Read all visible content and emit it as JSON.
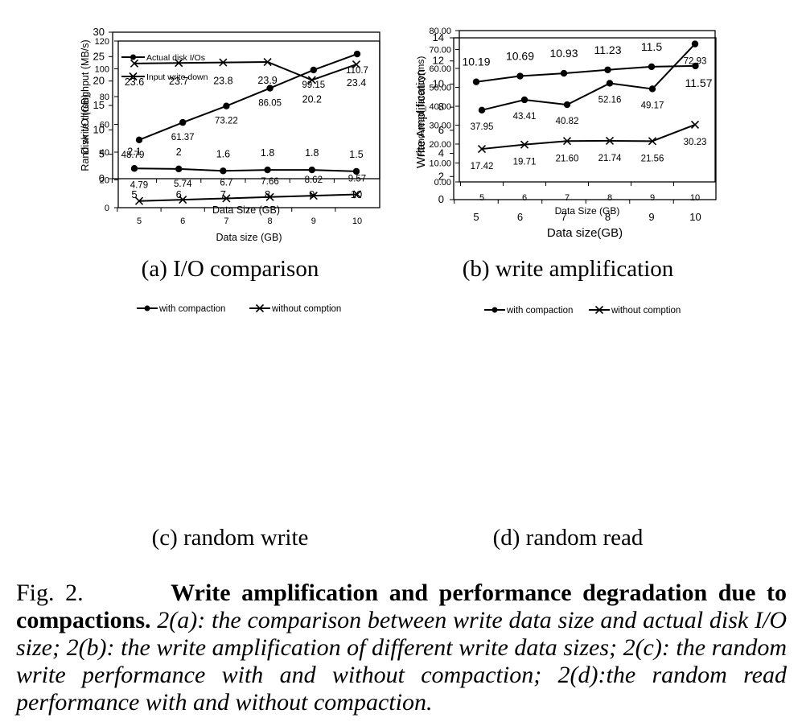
{
  "chart_data": [
    {
      "id": "a",
      "type": "line",
      "subcaption": "(a) I/O comparison",
      "xlabel": "Data size (GB)",
      "ylabel": "Disk I/O (GB)",
      "x": [
        5,
        6,
        7,
        8,
        9,
        10
      ],
      "ylim": [
        0,
        120
      ],
      "yticks": [
        "0",
        "20",
        "40",
        "60",
        "80",
        "100",
        "120"
      ],
      "legend_position": "top-left",
      "series": [
        {
          "name": "Actual disk I/Os",
          "marker": "dot",
          "values": [
            48.79,
            61.37,
            73.22,
            86.05,
            99.15,
            110.7
          ],
          "labels": [
            "48.79",
            "61.37",
            "73.22",
            "86.05",
            "99.15",
            "110.7"
          ]
        },
        {
          "name": "Input write down",
          "marker": "cross",
          "values": [
            4.79,
            5.74,
            6.7,
            7.66,
            8.62,
            9.57
          ],
          "labels": [
            "4.79",
            "5.74",
            "6.7",
            "7.66",
            "8.62",
            "9.57"
          ]
        }
      ]
    },
    {
      "id": "b",
      "type": "line",
      "subcaption": "(b) write amplification",
      "xlabel": "Data size(GB)",
      "ylabel": "Write Amplification",
      "x": [
        5,
        6,
        7,
        8,
        9,
        10
      ],
      "ylim": [
        0,
        14
      ],
      "yticks": [
        "0",
        "2",
        "4",
        "6",
        "8",
        "10",
        "12",
        "14"
      ],
      "series": [
        {
          "marker": "dot",
          "values": [
            10.19,
            10.69,
            10.93,
            11.23,
            11.5,
            11.57
          ],
          "labels": [
            "10.19",
            "10.69",
            "10.93",
            "11.23",
            "11.5",
            "11.57"
          ]
        }
      ]
    },
    {
      "id": "c",
      "type": "line",
      "subcaption": "(c) random write",
      "xlabel": "Data Size (GB)",
      "ylabel": "Rand.write.throughput (MB/s)",
      "x": [
        5,
        6,
        7,
        8,
        9,
        10
      ],
      "ylim": [
        0,
        30
      ],
      "yticks": [
        "0",
        "5",
        "10",
        "15",
        "20",
        "25",
        "30"
      ],
      "legend_position": "top",
      "series": [
        {
          "name": "with compaction",
          "marker": "dot",
          "values": [
            2.1,
            2,
            1.6,
            1.8,
            1.8,
            1.5
          ],
          "labels": [
            "2.1",
            "2",
            "1.6",
            "1.8",
            "1.8",
            "1.5"
          ]
        },
        {
          "name": "without comption",
          "marker": "cross",
          "values": [
            23.6,
            23.7,
            23.8,
            23.9,
            20.2,
            23.4
          ],
          "labels": [
            "23.6",
            "23.7",
            "23.8",
            "23.9",
            "20.2",
            "23.4"
          ]
        }
      ]
    },
    {
      "id": "d",
      "type": "line",
      "subcaption": "(d) random read",
      "xlabel": "Data Size (GB)",
      "ylabel": "Rand.read_latency(ms)",
      "x": [
        5,
        6,
        7,
        8,
        9,
        10
      ],
      "ylim": [
        0,
        80
      ],
      "yticks": [
        "0.00",
        "10.00",
        "20.00",
        "30.00",
        "40.00",
        "50.00",
        "60.00",
        "70.00",
        "80.00"
      ],
      "legend_position": "top",
      "series": [
        {
          "name": "with compaction",
          "marker": "dot",
          "values": [
            37.95,
            43.41,
            40.82,
            52.16,
            49.17,
            72.93
          ],
          "labels": [
            "37.95",
            "43.41",
            "40.82",
            "52.16",
            "49.17",
            "72.93"
          ]
        },
        {
          "name": "without comption",
          "marker": "cross",
          "values": [
            17.42,
            19.71,
            21.6,
            21.74,
            21.56,
            30.23
          ],
          "labels": [
            "17.42",
            "19.71",
            "21.60",
            "21.74",
            "21.56",
            "30.23"
          ]
        }
      ]
    }
  ],
  "caption": {
    "fig_label": "Fig. 2.",
    "bold_text": "Write amplification and performance degradation due to compactions.",
    "italic_text": "2(a): the comparison between write data size and actual disk I/O size; 2(b): the write amplification of different write data sizes; 2(c): the random write performance with and without compaction; 2(d):the random read performance with and without compaction."
  }
}
